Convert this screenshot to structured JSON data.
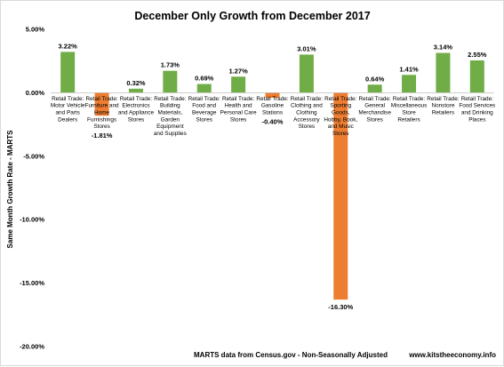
{
  "chart_data": {
    "type": "bar",
    "title": "December Only Growth from December 2017",
    "ylabel": "Same Month Growth Rate - MARTS",
    "xlabel": "",
    "ylim": [
      -20,
      5
    ],
    "yticks": [
      5,
      0,
      -5,
      -10,
      -15,
      -20
    ],
    "ytick_labels": [
      "5.00%",
      "0.00%",
      "-5.00%",
      "-10.00%",
      "-15.00%",
      "-20.00%"
    ],
    "grid": false,
    "legend": "none",
    "categories": [
      "Retail Trade: Motor Vehicle and Parts Dealers",
      "Retail Trade: Furniture and Home Furnishings Stores",
      "Retail Trade: Electronics and Appliance Stores",
      "Retail Trade: Building Materials, Garden Equipment and Supplies",
      "Retail Trade: Food and Beverage Stores",
      "Retail Trade: Health and Personal Care Stores",
      "Retail Trade: Gasoline Stations",
      "Retail Trade: Clothing and Clothing Accessory Stores",
      "Retail Trade: Sporting Goods, Hobby, Book, and Music Stores",
      "Retail Trade: General Merchandise Stores",
      "Retail Trade: Miscellaneous Store Retailers",
      "Retail Trade: Nonstore Retailers",
      "Retail Trade: Food Services and Drinking Places"
    ],
    "category_lines": [
      [
        "Retail Trade:",
        "Motor Vehicle",
        "and Parts",
        "Dealers"
      ],
      [
        "Retail Trade:",
        "Furniture and",
        "Home",
        "Furnishings",
        "Stores"
      ],
      [
        "Retail Trade:",
        "Electronics",
        "and Appliance",
        "Stores"
      ],
      [
        "Retail Trade:",
        "Building",
        "Materials,",
        "Garden",
        "Equipment",
        "and Supplies"
      ],
      [
        "Retail Trade:",
        "Food and",
        "Beverage",
        "Stores"
      ],
      [
        "Retail Trade:",
        "Health and",
        "Personal Care",
        "Stores"
      ],
      [
        "Retail Trade:",
        "Gasoline",
        "Stations"
      ],
      [
        "Retail Trade:",
        "Clothing and",
        "Clothing",
        "Accessory",
        "Stores"
      ],
      [
        "Retail Trade:",
        "Sporting",
        "Goods,",
        "Hobby, Book,",
        "and Music",
        "Stores"
      ],
      [
        "Retail Trade:",
        "General",
        "Merchandise",
        "Stores"
      ],
      [
        "Retail Trade:",
        "Miscellaneous",
        "Store",
        "Retailers"
      ],
      [
        "Retail Trade:",
        "Nonstore",
        "Retailers"
      ],
      [
        "Retail Trade:",
        "Food Services",
        "and Drinking",
        "Places"
      ]
    ],
    "values": [
      3.22,
      -1.81,
      0.32,
      1.73,
      0.69,
      1.27,
      -0.4,
      3.01,
      -16.3,
      0.64,
      1.41,
      3.14,
      2.55
    ],
    "value_labels": [
      "3.22%",
      "-1.81%",
      "0.32%",
      "1.73%",
      "0.69%",
      "1.27%",
      "-0.40%",
      "3.01%",
      "-16.30%",
      "0.64%",
      "1.41%",
      "3.14%",
      "2.55%"
    ],
    "colors": {
      "positive": "#70ad47",
      "negative": "#ed7d31"
    },
    "source_note": "MARTS data from Census.gov - Non-Seasonally Adjusted",
    "site": "www.kitstheeconomy.info"
  }
}
